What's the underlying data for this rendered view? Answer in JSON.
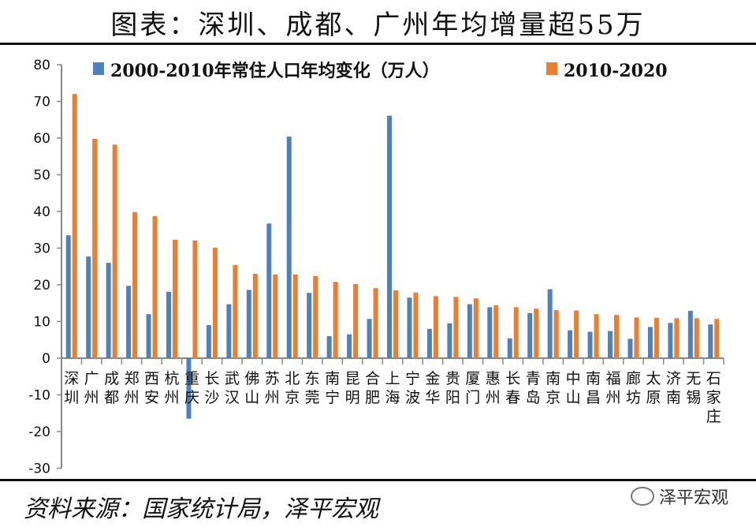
{
  "title": "图表：深圳、成都、广州年均增量超55万",
  "source": "资料来源：国家统计局，泽平宏观",
  "watermark": "泽平宏观",
  "chart_data": {
    "type": "bar",
    "categories": [
      "深圳",
      "广州",
      "成都",
      "郑州",
      "西安",
      "杭州",
      "重庆",
      "长沙",
      "武汉",
      "佛山",
      "苏州",
      "北京",
      "东莞",
      "南宁",
      "昆明",
      "合肥",
      "上海",
      "宁波",
      "金华",
      "贵阳",
      "厦门",
      "惠州",
      "长春",
      "青岛",
      "南京",
      "中山",
      "南昌",
      "福州",
      "廊坊",
      "太原",
      "济南",
      "无锡",
      "石家庄"
    ],
    "series": [
      {
        "name": "2000-2010年常住人口年均变化（万人）",
        "color": "#4F81BD",
        "values": [
          33.5,
          27.7,
          26.0,
          19.7,
          12.0,
          18.1,
          -16.5,
          9.0,
          14.7,
          18.6,
          36.7,
          60.4,
          17.8,
          6.0,
          6.5,
          10.7,
          66.1,
          16.5,
          8.0,
          9.5,
          14.7,
          13.9,
          5.4,
          12.3,
          18.8,
          7.6,
          7.2,
          7.4,
          5.3,
          8.5,
          9.6,
          12.9,
          9.2
        ]
      },
      {
        "name": "2010-2020",
        "color": "#ED7D31",
        "values": [
          72.0,
          59.8,
          58.2,
          39.8,
          38.7,
          32.3,
          32.1,
          30.1,
          25.4,
          23.0,
          22.8,
          22.8,
          22.4,
          20.8,
          20.2,
          19.1,
          18.5,
          17.9,
          16.9,
          16.7,
          16.3,
          14.4,
          13.9,
          13.5,
          13.1,
          13.0,
          12.0,
          11.8,
          11.1,
          11.0,
          10.9,
          10.9,
          10.7
        ]
      }
    ],
    "yticks": [
      -30,
      -20,
      -10,
      0,
      10,
      20,
      30,
      40,
      50,
      60,
      70,
      80
    ],
    "ylim": [
      -30,
      80
    ],
    "grid": false,
    "legend": "top"
  }
}
